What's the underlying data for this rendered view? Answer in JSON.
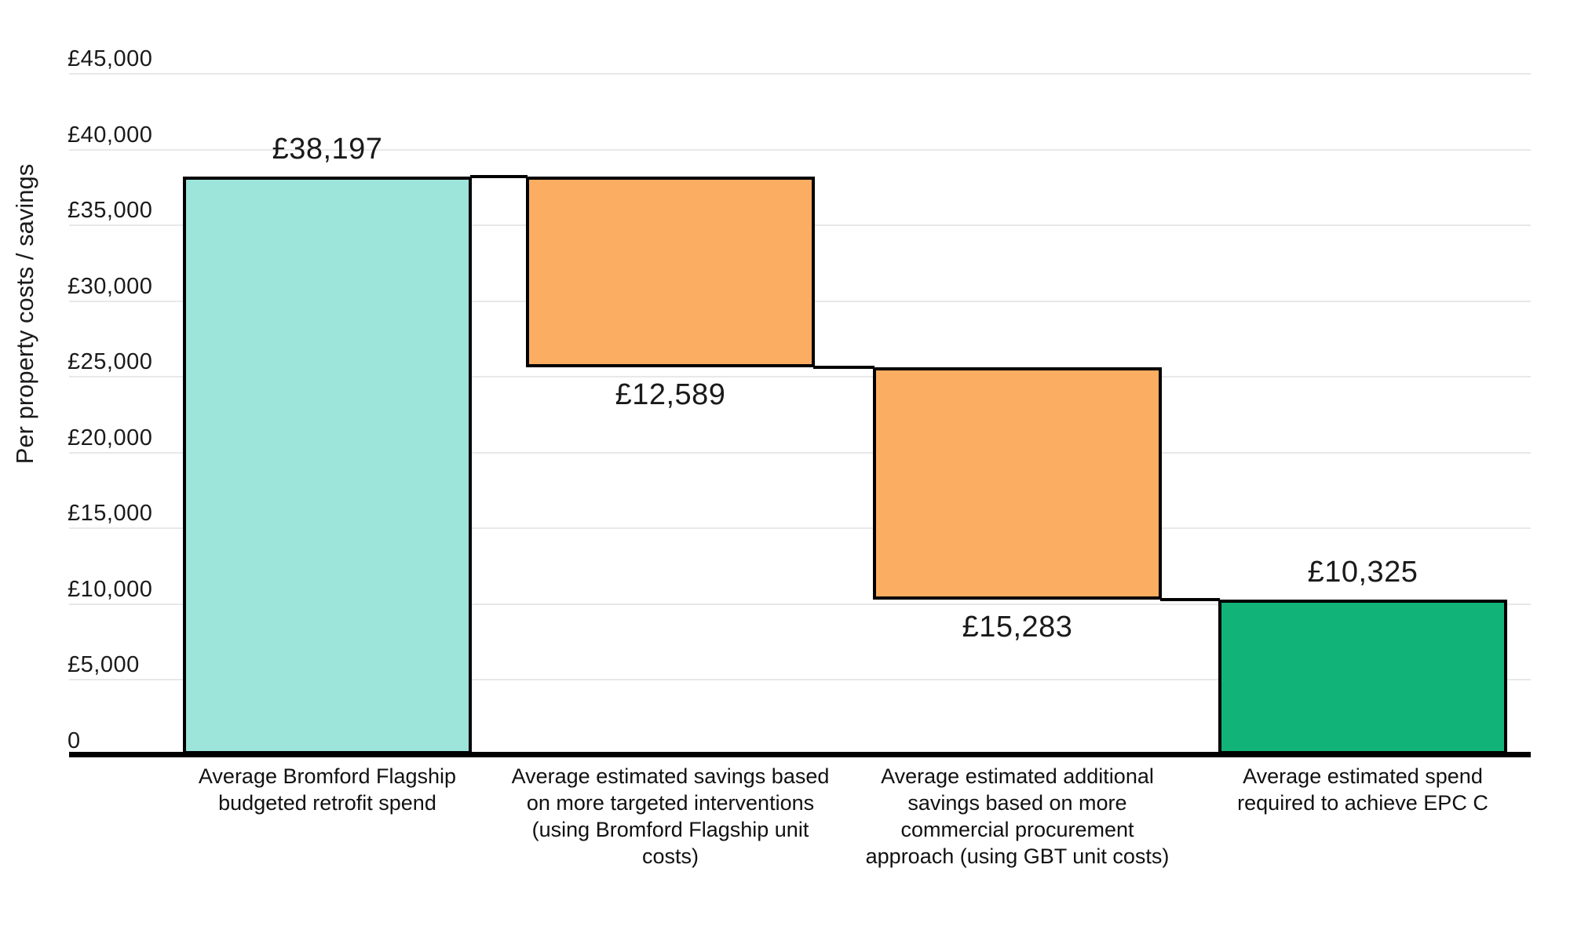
{
  "chart_data": {
    "type": "bar",
    "subtype": "waterfall",
    "title": "",
    "xlabel": "",
    "ylabel": "Per property costs / savings",
    "ylim": [
      0,
      45000
    ],
    "grid": "horizontal-light",
    "legend": "none",
    "background_color": "#ffffff",
    "colors": {
      "initial_total": "#9de4db",
      "decrease": "#fbad61",
      "final_total": "#12b378",
      "bar_border": "#000000",
      "gridline": "#e8e8e8",
      "axis_line": "#000000",
      "text": "#1a1a1a"
    },
    "yticks": [
      {
        "value": 45000,
        "label": "£45,000"
      },
      {
        "value": 40000,
        "label": "£40,000"
      },
      {
        "value": 35000,
        "label": "£35,000"
      },
      {
        "value": 30000,
        "label": "£30,000"
      },
      {
        "value": 25000,
        "label": "£25,000"
      },
      {
        "value": 20000,
        "label": "£20,000"
      },
      {
        "value": 15000,
        "label": "£15,000"
      },
      {
        "value": 10000,
        "label": "£10,000"
      },
      {
        "value": 5000,
        "label": "£5,000"
      },
      {
        "value": 0,
        "label": "0"
      }
    ],
    "categories": [
      "Average Bromford Flagship budgeted retrofit spend",
      "Average estimated savings based on more targeted interventions (using Bromford Flagship unit costs)",
      "Average estimated additional savings based on more commercial procurement approach (using GBT unit costs)",
      "Average estimated spend required to achieve EPC C"
    ],
    "bars": [
      {
        "category_lines": [
          "Average Bromford Flagship",
          "budgeted retrofit spend"
        ],
        "amount": 38197,
        "from": 0,
        "to": 38197,
        "value_label": "£38,197",
        "label_position": "above",
        "role": "initial_total",
        "color": "#9de4db"
      },
      {
        "category_lines": [
          "Average estimated savings based",
          "on more targeted interventions",
          "(using Bromford Flagship unit",
          "costs)"
        ],
        "amount": 12589,
        "from": 38197,
        "to": 25608,
        "value_label": "£12,589",
        "label_position": "below",
        "role": "decrease",
        "color": "#fbad61"
      },
      {
        "category_lines": [
          "Average estimated additional",
          "savings based on more",
          "commercial procurement",
          "approach (using GBT unit costs)"
        ],
        "amount": 15283,
        "from": 25608,
        "to": 10325,
        "value_label": "£15,283",
        "label_position": "below",
        "role": "decrease",
        "color": "#fbad61"
      },
      {
        "category_lines": [
          "Average estimated spend",
          "required to achieve EPC C"
        ],
        "amount": 10325,
        "from": 10325,
        "to": 0,
        "value_label": "£10,325",
        "label_position": "above",
        "role": "final_total",
        "color": "#12b378"
      }
    ],
    "connectors": [
      {
        "level": 38197,
        "between": [
          0,
          1
        ]
      },
      {
        "level": 25608,
        "between": [
          1,
          2
        ]
      },
      {
        "level": 10325,
        "between": [
          2,
          3
        ]
      }
    ]
  }
}
